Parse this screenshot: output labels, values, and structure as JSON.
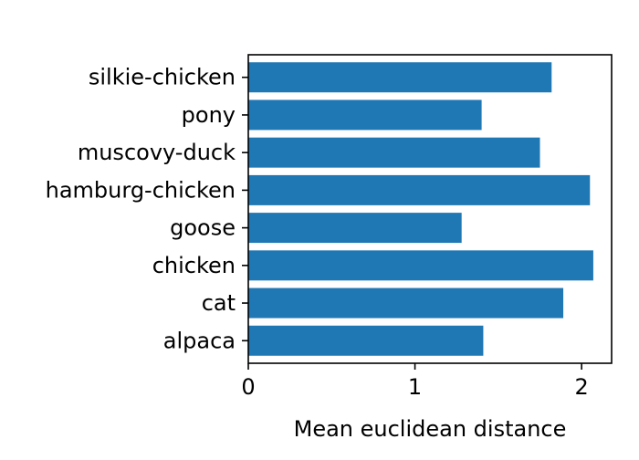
{
  "chart_data": {
    "type": "bar",
    "orientation": "horizontal",
    "categories": [
      "alpaca",
      "cat",
      "chicken",
      "goose",
      "hamburg-chicken",
      "muscovy-duck",
      "pony",
      "silkie-chicken"
    ],
    "values": [
      1.41,
      1.89,
      2.07,
      1.28,
      2.05,
      1.75,
      1.4,
      1.82
    ],
    "xlabel": "Mean euclidean distance",
    "ylabel": "",
    "title": "",
    "xlim": [
      0,
      2.18
    ],
    "xticks": [
      0,
      1,
      2
    ],
    "bar_color": "#1f77b4",
    "grid": false
  }
}
